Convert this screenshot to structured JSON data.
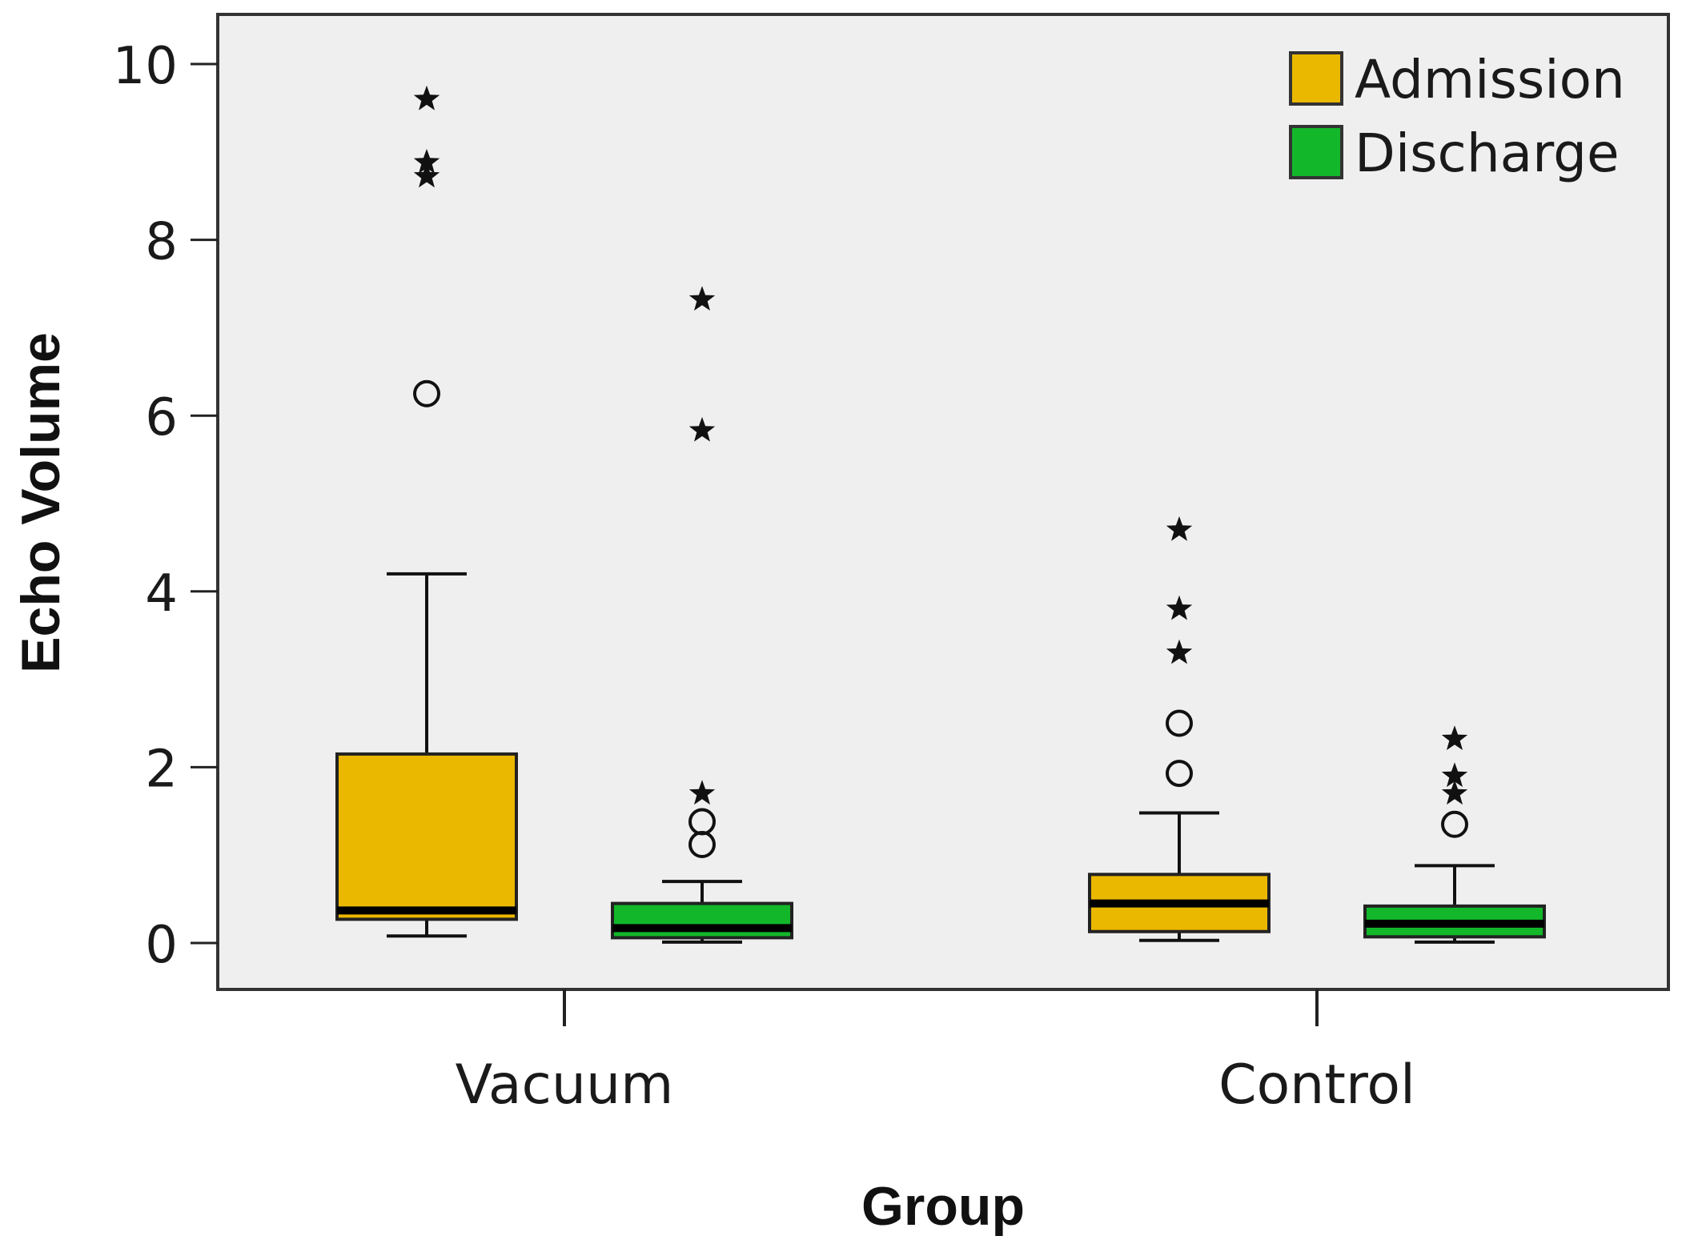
{
  "chart_data": {
    "type": "boxplot",
    "xlabel": "Group",
    "ylabel": "Echo Volume",
    "ylim": [
      0,
      10
    ],
    "yticks": [
      0,
      2,
      4,
      6,
      8,
      10
    ],
    "legend_position": "top-right",
    "categories": [
      "Vacuum",
      "Control"
    ],
    "series": [
      {
        "name": "Admission",
        "color": "#ebb800",
        "boxes": [
          {
            "category": "Vacuum",
            "whisker_low": 0.08,
            "q1": 0.27,
            "median": 0.37,
            "q3": 2.15,
            "whisker_high": 4.2,
            "outliers": [
              {
                "value": 6.25,
                "marker": "circle"
              }
            ],
            "extremes": [
              {
                "value": 9.6,
                "marker": "star"
              },
              {
                "value": 8.88,
                "marker": "star"
              },
              {
                "value": 8.72,
                "marker": "star"
              }
            ]
          },
          {
            "category": "Control",
            "whisker_low": 0.03,
            "q1": 0.13,
            "median": 0.45,
            "q3": 0.78,
            "whisker_high": 1.48,
            "outliers": [
              {
                "value": 2.5,
                "marker": "circle"
              },
              {
                "value": 1.93,
                "marker": "circle"
              }
            ],
            "extremes": [
              {
                "value": 4.7,
                "marker": "star"
              },
              {
                "value": 3.8,
                "marker": "star"
              },
              {
                "value": 3.3,
                "marker": "star"
              }
            ]
          }
        ]
      },
      {
        "name": "Discharge",
        "color": "#12b82a",
        "boxes": [
          {
            "category": "Vacuum",
            "whisker_low": 0.01,
            "q1": 0.06,
            "median": 0.17,
            "q3": 0.45,
            "whisker_high": 0.7,
            "outliers": [
              {
                "value": 1.38,
                "marker": "circle"
              },
              {
                "value": 1.12,
                "marker": "circle"
              }
            ],
            "extremes": [
              {
                "value": 7.32,
                "marker": "star"
              },
              {
                "value": 5.83,
                "marker": "star"
              },
              {
                "value": 1.7,
                "marker": "star"
              }
            ]
          },
          {
            "category": "Control",
            "whisker_low": 0.01,
            "q1": 0.07,
            "median": 0.22,
            "q3": 0.42,
            "whisker_high": 0.88,
            "outliers": [
              {
                "value": 1.35,
                "marker": "circle"
              }
            ],
            "extremes": [
              {
                "value": 2.32,
                "marker": "star"
              },
              {
                "value": 1.9,
                "marker": "star"
              },
              {
                "value": 1.7,
                "marker": "star"
              }
            ]
          }
        ]
      }
    ]
  },
  "colors": {
    "plot_background": "#efefef",
    "frame": "#333333",
    "median_line": "#000000"
  }
}
